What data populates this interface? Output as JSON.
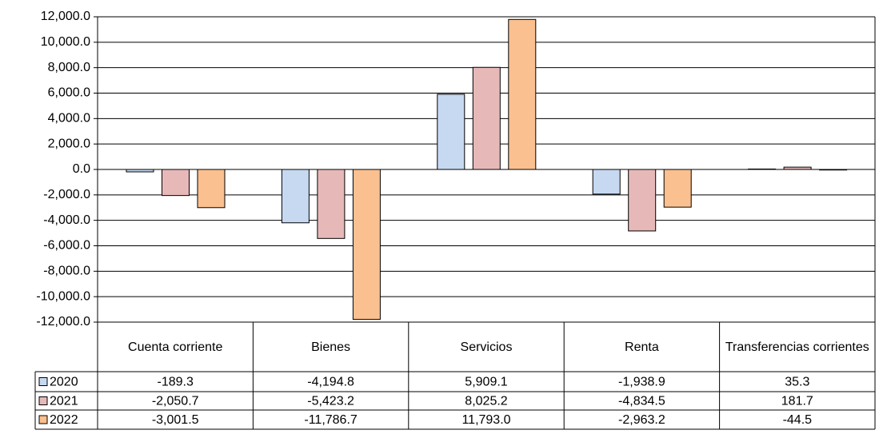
{
  "chart_data": {
    "type": "bar",
    "categories": [
      "Cuenta corriente",
      "Bienes",
      "Servicios",
      "Renta",
      "Transferencias corrientes"
    ],
    "series": [
      {
        "name": "2020",
        "color": "#c6d9f1",
        "values": [
          -189.3,
          -4194.8,
          5909.1,
          -1938.9,
          35.3
        ],
        "value_labels": [
          "-189.3",
          "-4,194.8",
          "5,909.1",
          "-1,938.9",
          "35.3"
        ]
      },
      {
        "name": "2021",
        "color": "#e6b9b8",
        "values": [
          -2050.7,
          -5423.2,
          8025.2,
          -4834.5,
          181.7
        ],
        "value_labels": [
          "-2,050.7",
          "-5,423.2",
          "8,025.2",
          "-4,834.5",
          "181.7"
        ]
      },
      {
        "name": "2022",
        "color": "#fac090",
        "values": [
          -3001.5,
          -11786.7,
          11793.0,
          -2963.2,
          -44.5
        ],
        "value_labels": [
          "-3,001.5",
          "-11,786.7",
          "11,793.0",
          "-2,963.2",
          "-44.5"
        ]
      }
    ],
    "ylim": [
      -12000,
      12000
    ],
    "yticks": [
      {
        "value": -12000,
        "label": "-12,000.0"
      },
      {
        "value": -10000,
        "label": "-10,000.0"
      },
      {
        "value": -8000,
        "label": "-8,000.0"
      },
      {
        "value": -6000,
        "label": "-6,000.0"
      },
      {
        "value": -4000,
        "label": "-4,000.0"
      },
      {
        "value": -2000,
        "label": "-2,000.0"
      },
      {
        "value": 0,
        "label": "0.0"
      },
      {
        "value": 2000,
        "label": "2,000.0"
      },
      {
        "value": 4000,
        "label": "4,000.0"
      },
      {
        "value": 6000,
        "label": "6,000.0"
      },
      {
        "value": 8000,
        "label": "8,000.0"
      },
      {
        "value": 10000,
        "label": "10,000.0"
      },
      {
        "value": 12000,
        "label": "12,000.0"
      }
    ],
    "grid": true
  }
}
